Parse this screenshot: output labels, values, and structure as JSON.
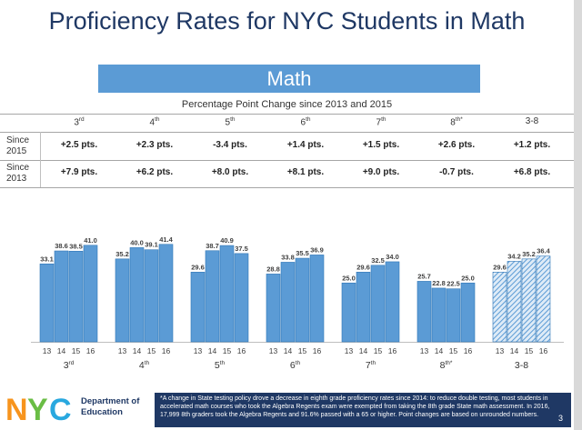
{
  "title": "Proficiency Rates for NYC Students in Math",
  "banner": "Math",
  "subtitle": "Percentage Point Change since 2013 and 2015",
  "table": {
    "columns": [
      {
        "base": "3",
        "sup": "rd"
      },
      {
        "base": "4",
        "sup": "th"
      },
      {
        "base": "5",
        "sup": "th"
      },
      {
        "base": "6",
        "sup": "th"
      },
      {
        "base": "7",
        "sup": "th"
      },
      {
        "base": "8",
        "sup": "th*"
      },
      {
        "base": "3-8",
        "sup": ""
      }
    ],
    "rows": [
      {
        "label_1": "Since",
        "label_2": "2015",
        "values": [
          "+2.5 pts.",
          "+2.3 pts.",
          "-3.4 pts.",
          "+1.4 pts.",
          "+1.5 pts.",
          "+2.6 pts.",
          "+1.2 pts."
        ]
      },
      {
        "label_1": "Since",
        "label_2": "2013",
        "values": [
          "+7.9 pts.",
          "+6.2 pts.",
          "+8.0 pts.",
          "+8.1 pts.",
          "+9.0 pts.",
          "-0.7 pts.",
          "+6.8 pts."
        ]
      }
    ]
  },
  "chart_data": {
    "type": "bar",
    "ylim": [
      0,
      50
    ],
    "groups": [
      {
        "base": "3",
        "sup": "rd",
        "years": [
          "13",
          "14",
          "15",
          "16"
        ],
        "values": [
          33.1,
          38.6,
          38.5,
          41.0
        ],
        "labels": [
          "33.1",
          "38.6",
          "38.5",
          "41.0"
        ],
        "hatched": false
      },
      {
        "base": "4",
        "sup": "th",
        "years": [
          "13",
          "14",
          "15",
          "16"
        ],
        "values": [
          35.2,
          40.0,
          39.1,
          41.4
        ],
        "labels": [
          "35.2",
          "40.0",
          "39.1",
          "41.4"
        ],
        "hatched": false
      },
      {
        "base": "5",
        "sup": "th",
        "years": [
          "13",
          "14",
          "15",
          "16"
        ],
        "values": [
          29.6,
          38.7,
          40.9,
          37.5
        ],
        "labels": [
          "29.6",
          "38.7",
          "40.9",
          "37.5"
        ],
        "hatched": false
      },
      {
        "base": "6",
        "sup": "th",
        "years": [
          "13",
          "14",
          "15",
          "16"
        ],
        "values": [
          28.8,
          33.8,
          35.5,
          36.9
        ],
        "labels": [
          "28.8",
          "33.8",
          "35.5",
          "36.9"
        ],
        "hatched": false
      },
      {
        "base": "7",
        "sup": "th",
        "years": [
          "13",
          "14",
          "15",
          "16"
        ],
        "values": [
          25.0,
          29.6,
          32.5,
          34.0
        ],
        "labels": [
          "25.0",
          "29.6",
          "32.5",
          "34.0"
        ],
        "hatched": false
      },
      {
        "base": "8",
        "sup": "th*",
        "years": [
          "13",
          "14",
          "15",
          "16"
        ],
        "values": [
          25.7,
          22.8,
          22.5,
          25.0
        ],
        "labels": [
          "25.7",
          "22.8",
          "22.5",
          "25.0"
        ],
        "hatched": false
      },
      {
        "base": "3-8",
        "sup": "",
        "years": [
          "13",
          "14",
          "15",
          "16"
        ],
        "values": [
          29.6,
          34.2,
          35.2,
          36.4
        ],
        "labels": [
          "29.6",
          "34.2",
          "35.2",
          "36.4"
        ],
        "hatched": true
      }
    ],
    "colors": {
      "bar": "#5b9bd5",
      "bar_edge": "#2e75b6",
      "hatch_bg": "#deebf7"
    }
  },
  "footer": {
    "logo": "NYC",
    "dept_line1": "Department of",
    "dept_line2": "Education",
    "footnote": "*A change in State testing policy drove a decrease in eighth grade proficiency rates since 2014: to reduce double testing, most students in accelerated math courses who took the Algebra Regents exam were exempted from taking the 8th grade State math assessment. In 2016, 17,999 8th graders took the Algebra Regents and 91.6% passed with a 65 or higher. Point changes are based on unrounded numbers.",
    "page": "3"
  }
}
